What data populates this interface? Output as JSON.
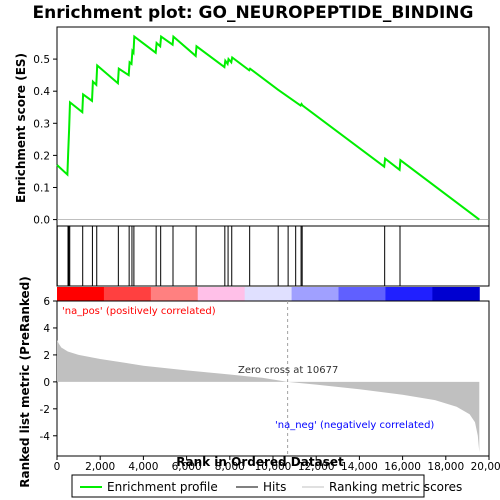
{
  "chart_data": {
    "type": "line",
    "title": "Enrichment plot: GO_NEUROPEPTIDE_BINDING",
    "top_panel": {
      "ylabel": "Enrichment score (ES)",
      "ylim": [
        -0.02,
        0.6
      ],
      "yticks": [
        0.0,
        0.1,
        0.2,
        0.3,
        0.4,
        0.5
      ],
      "series_name": "Enrichment profile",
      "color": "#00ee00",
      "es_profile": [
        [
          0,
          0.17
        ],
        [
          480,
          0.14
        ],
        [
          520,
          0.21
        ],
        [
          560,
          0.28
        ],
        [
          600,
          0.365
        ],
        [
          1170,
          0.335
        ],
        [
          1210,
          0.39
        ],
        [
          1620,
          0.37
        ],
        [
          1660,
          0.43
        ],
        [
          1820,
          0.42
        ],
        [
          1860,
          0.48
        ],
        [
          2820,
          0.425
        ],
        [
          2860,
          0.47
        ],
        [
          3320,
          0.45
        ],
        [
          3360,
          0.49
        ],
        [
          3450,
          0.485
        ],
        [
          3490,
          0.525
        ],
        [
          3540,
          0.52
        ],
        [
          3580,
          0.57
        ],
        [
          4570,
          0.52
        ],
        [
          4610,
          0.55
        ],
        [
          4780,
          0.54
        ],
        [
          4820,
          0.57
        ],
        [
          5350,
          0.545
        ],
        [
          5390,
          0.57
        ],
        [
          6420,
          0.51
        ],
        [
          6460,
          0.54
        ],
        [
          7750,
          0.475
        ],
        [
          7790,
          0.495
        ],
        [
          7900,
          0.485
        ],
        [
          7940,
          0.5
        ],
        [
          8070,
          0.49
        ],
        [
          8110,
          0.505
        ],
        [
          8900,
          0.465
        ],
        [
          8940,
          0.47
        ],
        [
          10220,
          0.405
        ],
        [
          11280,
          0.355
        ],
        [
          11320,
          0.36
        ],
        [
          11370,
          0.355
        ],
        [
          15150,
          0.165
        ],
        [
          15190,
          0.19
        ],
        [
          15860,
          0.155
        ],
        [
          15900,
          0.185
        ],
        [
          19550,
          0.0
        ]
      ]
    },
    "hits": {
      "name": "Hits",
      "positions": [
        10,
        510,
        550,
        590,
        1190,
        1640,
        1840,
        2840,
        3340,
        3470,
        3560,
        4590,
        4800,
        5370,
        6440,
        7770,
        7920,
        8090,
        8920,
        10240,
        10700,
        11050,
        11300,
        11350,
        15170,
        15880
      ]
    },
    "ranked_panel": {
      "ylabel": "Ranked list metric (PreRanked)",
      "xlabel": "Rank in Ordered Dataset",
      "ylim": [
        -5.5,
        6
      ],
      "yticks": [
        -4,
        -2,
        0,
        2,
        4,
        6
      ],
      "xlim": [
        0,
        20000
      ],
      "xticks": [
        0,
        2000,
        4000,
        6000,
        8000,
        10000,
        12000,
        14000,
        16000,
        18000,
        20000
      ],
      "n_genes": 19550,
      "metric_curve": [
        [
          0,
          3.1
        ],
        [
          80,
          2.85
        ],
        [
          200,
          2.55
        ],
        [
          500,
          2.25
        ],
        [
          1000,
          2.0
        ],
        [
          2000,
          1.7
        ],
        [
          4000,
          1.2
        ],
        [
          6000,
          0.85
        ],
        [
          8000,
          0.55
        ],
        [
          9500,
          0.3
        ],
        [
          10677,
          0.0
        ],
        [
          12000,
          -0.2
        ],
        [
          14000,
          -0.55
        ],
        [
          16000,
          -0.95
        ],
        [
          17500,
          -1.35
        ],
        [
          18500,
          -1.85
        ],
        [
          19100,
          -2.4
        ],
        [
          19350,
          -3.0
        ],
        [
          19480,
          -4.0
        ],
        [
          19550,
          -5.2
        ]
      ],
      "zero_cross_label": "Zero cross at 10677",
      "zero_cross_rank": 10677,
      "na_pos_label": "'na_pos' (positively correlated)",
      "na_neg_label": "'na_neg' (negatively correlated)",
      "pos_color": "#ff0000",
      "neg_color": "#0000ff",
      "heat_colors": [
        "#ff0000",
        "#ff4040",
        "#ff8080",
        "#ffc0e8",
        "#e0e0ff",
        "#a0a0ff",
        "#6060ff",
        "#2020ff",
        "#0000d0"
      ]
    },
    "legend": [
      {
        "label": "Enrichment profile",
        "color": "#00ee00"
      },
      {
        "label": "Hits",
        "color": "#000000"
      },
      {
        "label": "Ranking metric scores",
        "color": "#c0c0c0"
      }
    ]
  }
}
